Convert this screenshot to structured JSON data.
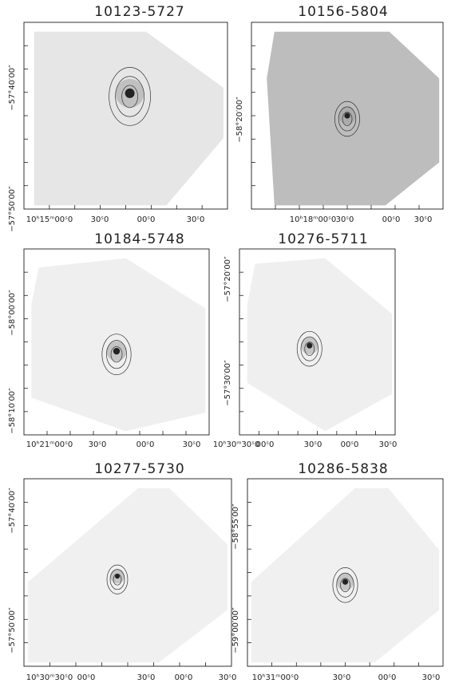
{
  "panels": [
    {
      "title": "10123-5727",
      "y_labels": [
        "−57°40′00″",
        "−57°50′00″"
      ],
      "x_labels": [
        "10ʰ15ᵐ00ˢ0",
        "30ˢ0",
        "00ˢ0",
        "30ˢ0"
      ]
    },
    {
      "title": "10156-5804",
      "y_labels": [
        "−58°20′00″"
      ],
      "x_labels": [
        "10ʰ18ᵐ00ˢ0",
        "30ˢ0",
        "00ˢ0",
        "30ˢ0"
      ]
    },
    {
      "title": "10184-5748",
      "y_labels": [
        "−58°00′00″",
        "−58°10′00″"
      ],
      "x_labels": [
        "10ʰ21ᵐ00ˢ0",
        "30ˢ0",
        "00ˢ0",
        "30ˢ0"
      ]
    },
    {
      "title": "10276-5711",
      "y_labels": [
        "−57°20′00″",
        "−57°30′00″"
      ],
      "x_labels": [
        "10ʰ30ᵐ30ˢ0",
        "00ˢ0",
        "30ˢ0",
        "00ˢ0",
        "30ˢ0"
      ]
    },
    {
      "title": "10277-5730",
      "y_labels": [
        "−57°40′00″",
        "−57°50′00″"
      ],
      "x_labels": [
        "10ʰ30ᵐ30ˢ0",
        "00ˢ0",
        "30ˢ0",
        "00ˢ0",
        "30ˢ0"
      ]
    },
    {
      "title": "10286-5838",
      "y_labels": [
        "−58°55′00″",
        "−59°00′00″"
      ],
      "x_labels": [
        "10ʰ31ᵐ00ˢ0",
        "30ˢ0",
        "00ˢ0",
        "30ˢ0"
      ]
    }
  ]
}
